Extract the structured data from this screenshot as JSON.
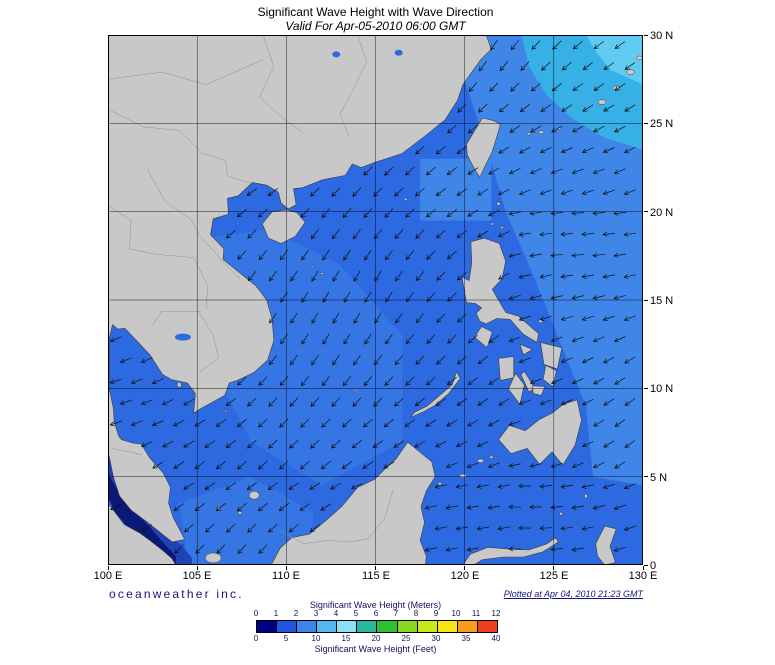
{
  "header": {
    "title": "Significant Wave Height with Wave Direction",
    "subtitle": "Valid For Apr-05-2010 06:00 GMT"
  },
  "axes": {
    "lon_labels": [
      "100 E",
      "105 E",
      "110 E",
      "115 E",
      "120 E",
      "125 E",
      "130 E"
    ],
    "lat_labels": [
      "30 N",
      "25 N",
      "20 N",
      "15 N",
      "10 N",
      "5 N",
      "0"
    ]
  },
  "footer": {
    "branding": "oceanweather inc.",
    "plotted": "Plotted at Apr 04, 2010 21:23 GMT"
  },
  "legend": {
    "meters_label": "Significant Wave Height (Meters)",
    "feet_label": "Significant Wave Height (Feet)",
    "meters_ticks": [
      "0",
      "1",
      "2",
      "3",
      "4",
      "5",
      "6",
      "7",
      "8",
      "9",
      "10",
      "11",
      "12"
    ],
    "feet_ticks": [
      "0",
      "5",
      "10",
      "15",
      "20",
      "25",
      "30",
      "35",
      "40"
    ],
    "colors": [
      "#000082",
      "#2255dd",
      "#3a86ea",
      "#55b8f0",
      "#8ce0f5",
      "#28b8a0",
      "#30c035",
      "#88d822",
      "#c8e818",
      "#f8e414",
      "#f89c1c",
      "#f03c20"
    ]
  },
  "map": {
    "bounds": {
      "lon_min": 100,
      "lon_max": 130,
      "lat_min": 0,
      "lat_max": 30
    },
    "colors": {
      "land": "#c8c8c8",
      "coast": "#3c3c3c",
      "border_line": "#909090",
      "ocean_base": "#2d69e1",
      "ocean_mid": "#3576e4",
      "ocean_light": "#3f86e8",
      "ocean_cyan": "#36b0e6",
      "ocean_cyan2": "#5fcbf0",
      "calm_halo": "#1c44b4",
      "calm_core": "#0a1878",
      "arrow": "#101010"
    }
  }
}
